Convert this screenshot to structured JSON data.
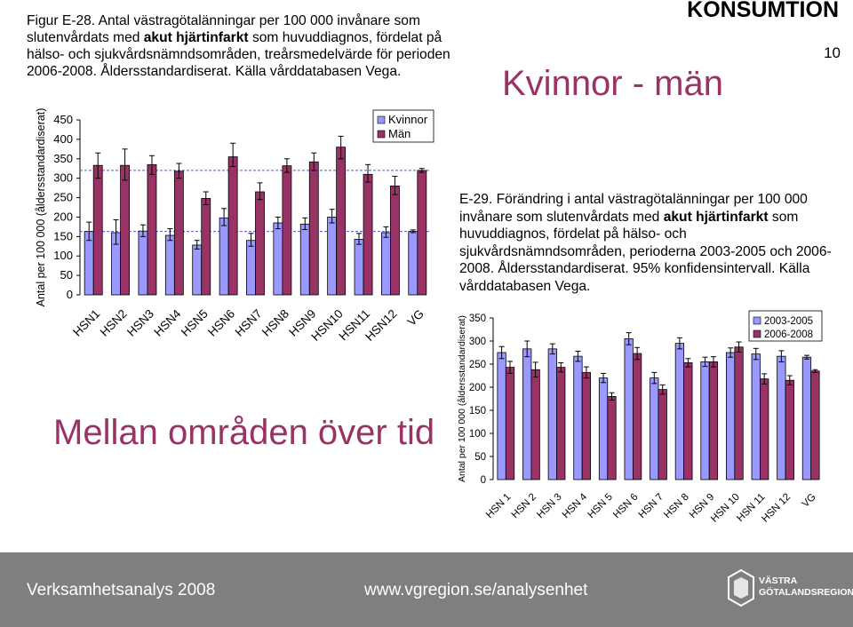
{
  "header": {
    "section": "KONSUMTION",
    "page_number": "10",
    "slide_title": "Kvinnor - män",
    "subtitle": "Mellan områden över tid"
  },
  "caption1": {
    "pre": "Figur E-28. Antal västragötalänningar per 100 000 invånare som slutenvårdats med ",
    "bold": "akut hjärtinfarkt",
    "post": " som huvuddiagnos, fördelat på hälso- och sjukvårdsnämndsområden, treårsmedelvärde för perioden 2006-2008. Åldersstandardiserat. Källa vårddatabasen Vega."
  },
  "caption2": {
    "pre": "E-29. Förändring i antal västragötalänningar per 100 000 invånare som slutenvårdats med ",
    "bold": "akut hjärtinfarkt",
    "post": " som huvuddiagnos, fördelat på hälso- och sjukvårdsnämndsområden, perioderna 2003-2005 och 2006-2008. Åldersstandardiserat. 95% konfidensintervall. Källa vårddatabasen Vega."
  },
  "footer": {
    "left": "Verksamhetsanalys 2008",
    "center": "www.vgregion.se/analysenhet",
    "logo_line1": "VÄSTRA",
    "logo_line2": "GÖTALANDSREGIONEN"
  },
  "colors": {
    "series_light": "#9999ff",
    "series_dark": "#993366",
    "reference_line": "#5555cc",
    "title_color": "#993366",
    "footer_bg": "#7f7f7f"
  },
  "chart_data": [
    {
      "type": "bar",
      "ylabel": "Antal per 100 000 (åldersstandardiserat)",
      "ylim": [
        0,
        450
      ],
      "yticks": [
        0,
        50,
        100,
        150,
        200,
        250,
        300,
        350,
        400,
        450
      ],
      "categories": [
        "HSN1",
        "HSN2",
        "HSN3",
        "HSN4",
        "HSN5",
        "HSN6",
        "HSN7",
        "HSN8",
        "HSN9",
        "HSN10",
        "HSN11",
        "HSN12",
        "VG"
      ],
      "legend_position": "top-right",
      "series": [
        {
          "name": "Kvinnor",
          "values": [
            163,
            160,
            164,
            153,
            128,
            198,
            140,
            185,
            182,
            200,
            143,
            160,
            163
          ],
          "error_low": [
            140,
            130,
            150,
            140,
            118,
            178,
            125,
            170,
            168,
            185,
            130,
            148,
            160
          ],
          "error_high": [
            187,
            193,
            180,
            170,
            140,
            222,
            158,
            200,
            198,
            220,
            158,
            175,
            167
          ]
        },
        {
          "name": "Män",
          "values": [
            333,
            333,
            335,
            318,
            248,
            355,
            265,
            332,
            342,
            380,
            310,
            280,
            320
          ],
          "error_low": [
            300,
            295,
            310,
            300,
            232,
            330,
            245,
            315,
            320,
            350,
            290,
            258,
            315
          ],
          "error_high": [
            365,
            375,
            358,
            338,
            265,
            390,
            288,
            350,
            365,
            408,
            335,
            305,
            325
          ]
        }
      ],
      "reference_lines": [
        163,
        320
      ]
    },
    {
      "type": "bar",
      "ylabel": "Antal per 100 000 (åldersstandardiserat)",
      "ylim": [
        0,
        350
      ],
      "yticks": [
        0,
        50,
        100,
        150,
        200,
        250,
        300,
        350
      ],
      "categories": [
        "HSN 1",
        "HSN 2",
        "HSN 3",
        "HSN 4",
        "HSN 5",
        "HSN 6",
        "HSN 7",
        "HSN 8",
        "HSN 9",
        "HSN 10",
        "HSN 11",
        "HSN 12",
        "VG"
      ],
      "legend_position": "top-right",
      "series": [
        {
          "name": "2003-2005",
          "values": [
            275,
            283,
            283,
            267,
            220,
            305,
            220,
            295,
            255,
            275,
            272,
            267,
            265
          ],
          "error_low": [
            262,
            266,
            272,
            256,
            210,
            292,
            208,
            283,
            245,
            265,
            260,
            255,
            261
          ],
          "error_high": [
            288,
            300,
            294,
            278,
            230,
            318,
            232,
            307,
            265,
            285,
            284,
            279,
            269
          ]
        },
        {
          "name": "2006-2008",
          "values": [
            243,
            238,
            243,
            232,
            180,
            273,
            195,
            253,
            255,
            287,
            218,
            215,
            235
          ],
          "error_low": [
            230,
            222,
            233,
            220,
            172,
            260,
            185,
            244,
            244,
            276,
            207,
            205,
            232
          ],
          "error_high": [
            256,
            254,
            253,
            244,
            188,
            286,
            205,
            262,
            266,
            298,
            229,
            225,
            238
          ]
        }
      ]
    }
  ]
}
